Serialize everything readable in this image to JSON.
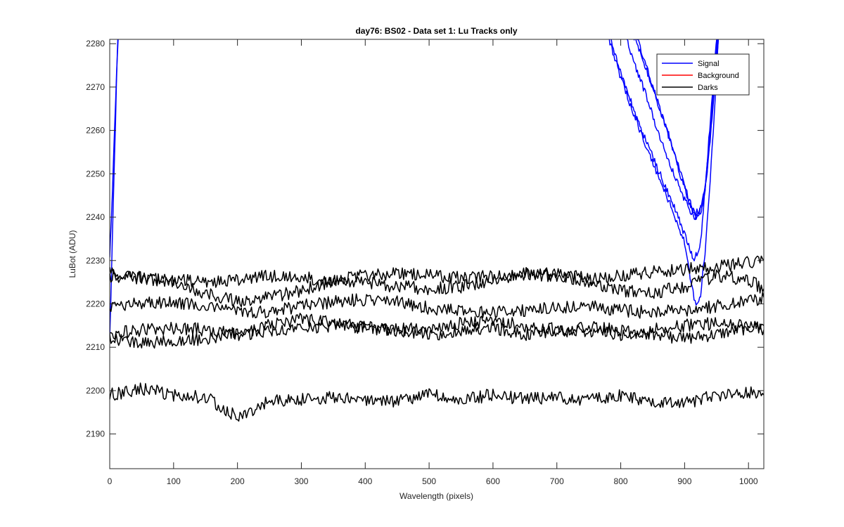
{
  "chart_data": {
    "type": "line",
    "title": "day76: BS02 - Data set 1: Lu Tracks only",
    "xlabel": "Wavelength (pixels)",
    "ylabel": "LuBot (ADU)",
    "xlim": [
      0,
      1024
    ],
    "ylim": [
      2182,
      2281
    ],
    "xticks": [
      "0",
      "100",
      "200",
      "300",
      "400",
      "500",
      "600",
      "700",
      "800",
      "900",
      "1000"
    ],
    "yticks": [
      "2190",
      "2200",
      "2210",
      "2220",
      "2230",
      "2240",
      "2250",
      "2260",
      "2270",
      "2280"
    ],
    "grid": false,
    "legend_position": "top-right",
    "legend": [
      {
        "label": "Signal",
        "color": "#0000ff"
      },
      {
        "label": "Background",
        "color": "#ff0000"
      },
      {
        "label": "Darks",
        "color": "#000000"
      }
    ],
    "series": [
      {
        "group": "Signal",
        "color": "#0000ff",
        "x": [
          0,
          3,
          6,
          9,
          12,
          15
        ],
        "y": [
          2212,
          2228,
          2245,
          2262,
          2278,
          2290
        ]
      },
      {
        "group": "Signal",
        "color": "#0000ff",
        "x": [
          0,
          4,
          8,
          12,
          16
        ],
        "y": [
          2230,
          2245,
          2262,
          2278,
          2290
        ]
      },
      {
        "group": "Signal",
        "color": "#0000ff",
        "x": [
          760,
          780,
          800,
          820,
          840,
          860,
          880,
          900,
          910,
          918,
          925,
          932,
          940,
          948,
          956
        ],
        "y": [
          2290,
          2282,
          2272,
          2264,
          2256,
          2249,
          2242,
          2234,
          2225,
          2219,
          2222,
          2232,
          2248,
          2268,
          2290
        ]
      },
      {
        "group": "Signal",
        "color": "#0000ff",
        "x": [
          770,
          790,
          810,
          830,
          850,
          870,
          890,
          905,
          915,
          925,
          935,
          945,
          955
        ],
        "y": [
          2290,
          2278,
          2269,
          2261,
          2254,
          2247,
          2240,
          2234,
          2230,
          2234,
          2252,
          2272,
          2290
        ]
      },
      {
        "group": "Signal",
        "color": "#0000ff",
        "x": [
          790,
          805,
          820,
          840,
          860,
          880,
          900,
          915,
          925,
          932,
          940,
          948,
          956
        ],
        "y": [
          2290,
          2283,
          2276,
          2268,
          2259,
          2251,
          2244,
          2240,
          2241,
          2246,
          2258,
          2274,
          2290
        ]
      },
      {
        "group": "Signal",
        "color": "#0000ff",
        "x": [
          800,
          815,
          830,
          850,
          870,
          890,
          905,
          915,
          925,
          932,
          940,
          948,
          956
        ],
        "y": [
          2290,
          2284,
          2278,
          2270,
          2261,
          2252,
          2245,
          2241,
          2242,
          2247,
          2259,
          2275,
          2290
        ]
      },
      {
        "group": "Signal",
        "color": "#0000ff",
        "x": [
          805,
          820,
          835,
          855,
          875,
          895,
          908,
          918,
          928,
          935,
          943,
          951,
          958
        ],
        "y": [
          2290,
          2284,
          2277,
          2268,
          2259,
          2249,
          2243,
          2240,
          2243,
          2250,
          2263,
          2278,
          2290
        ]
      },
      {
        "group": "Darks",
        "color": "#000000",
        "x": [
          0,
          50,
          100,
          150,
          200,
          250,
          300,
          350,
          400,
          450,
          500,
          550,
          600,
          650,
          700,
          750,
          800,
          850,
          900,
          950,
          1000,
          1024
        ],
        "y": [
          2226.5,
          2226,
          2225.5,
          2225,
          2225.5,
          2226.5,
          2226,
          2225.5,
          2226.5,
          2227,
          2226.5,
          2226,
          2226.5,
          2227,
          2226.5,
          2226,
          2226.5,
          2227.5,
          2228,
          2228.5,
          2229.5,
          2230
        ]
      },
      {
        "group": "Darks",
        "color": "#000000",
        "x": [
          0,
          50,
          100,
          150,
          200,
          250,
          300,
          350,
          400,
          450,
          500,
          550,
          600,
          650,
          700,
          750,
          800,
          850,
          900,
          950,
          1000,
          1024
        ],
        "y": [
          2227,
          2226,
          2224.5,
          2222.5,
          2220.5,
          2221.5,
          2223,
          2225.5,
          2225,
          2224,
          2223.5,
          2224,
          2225.5,
          2227,
          2227,
          2225,
          2223,
          2222.5,
          2224,
          2226.5,
          2225.5,
          2223.5
        ]
      },
      {
        "group": "Darks",
        "color": "#000000",
        "x": [
          0,
          50,
          100,
          150,
          200,
          250,
          300,
          350,
          400,
          450,
          500,
          550,
          600,
          650,
          700,
          750,
          800,
          850,
          900,
          950,
          1000,
          1024
        ],
        "y": [
          2219.5,
          2220,
          2220.5,
          2219.5,
          2218.5,
          2218,
          2219.5,
          2220.5,
          2221,
          2220.5,
          2219,
          2218.5,
          2218,
          2218.5,
          2219,
          2219.5,
          2218.5,
          2218,
          2218.5,
          2219.5,
          2220.5,
          2221.5
        ]
      },
      {
        "group": "Darks",
        "color": "#000000",
        "x": [
          0,
          50,
          100,
          150,
          200,
          250,
          300,
          350,
          400,
          450,
          500,
          550,
          600,
          650,
          700,
          750,
          800,
          850,
          900,
          950,
          1000,
          1024
        ],
        "y": [
          2213,
          2214,
          2214.5,
          2214,
          2213,
          2213.5,
          2214.5,
          2215,
          2214.5,
          2214,
          2213,
          2213.5,
          2214.5,
          2213,
          2213.5,
          2214.5,
          2214,
          2213,
          2212,
          2213,
          2214.5,
          2215
        ]
      },
      {
        "group": "Darks",
        "color": "#000000",
        "x": [
          0,
          50,
          100,
          150,
          200,
          250,
          300,
          350,
          400,
          450,
          500,
          550,
          600,
          650,
          700,
          750,
          800,
          850,
          900,
          950,
          1000,
          1024
        ],
        "y": [
          2212,
          2211,
          2211.5,
          2212,
          2213,
          2215,
          2216.5,
          2215.5,
          2214.5,
          2214,
          2214.5,
          2215.5,
          2216,
          2215,
          2214,
          2213.5,
          2213,
          2214,
          2215,
          2215.5,
          2215,
          2214
        ]
      },
      {
        "group": "Darks",
        "color": "#000000",
        "x": [
          0,
          50,
          100,
          150,
          200,
          250,
          300,
          350,
          400,
          450,
          500,
          550,
          600,
          650,
          700,
          750,
          800,
          850,
          900,
          950,
          1000,
          1024
        ],
        "y": [
          2199,
          2200.5,
          2199,
          2198.5,
          2194,
          2197.5,
          2198,
          2198.5,
          2198,
          2197.5,
          2199,
          2198,
          2199,
          2198,
          2198.5,
          2198,
          2199,
          2197,
          2197,
          2199,
          2199.5,
          2199
        ]
      }
    ]
  }
}
